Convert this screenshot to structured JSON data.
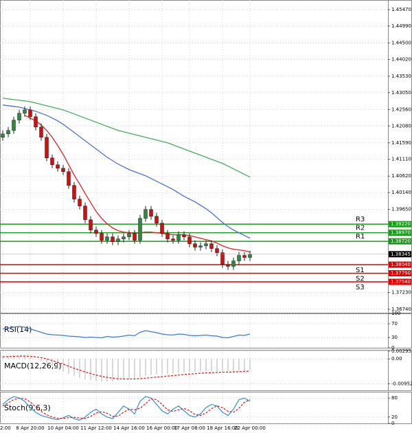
{
  "chart_data": [
    {
      "type": "candlestick",
      "grid": true,
      "categories": [
        "2:00",
        null,
        null,
        null,
        null,
        "8 Apr 20:00",
        null,
        null,
        null,
        null,
        null,
        "10 Apr 04:00",
        null,
        null,
        null,
        null,
        null,
        "11 Apr 12:00",
        null,
        null,
        null,
        null,
        null,
        "14 Apr 16:00",
        null,
        null,
        null,
        null,
        null,
        "16 Apr 00:00",
        null,
        null,
        null,
        null,
        "17 Apr 08:00",
        null,
        null,
        null,
        null,
        null,
        "18 Apr 16:00",
        null,
        null,
        null,
        null,
        "22 Apr 00:00"
      ],
      "ylim": [
        1.3664,
        1.4575
      ],
      "yticks": [
        {
          "value": 1.4547,
          "label": "1.45470"
        },
        {
          "value": 1.4499,
          "label": "1.44990"
        },
        {
          "value": 1.445,
          "label": "1.44500"
        },
        {
          "value": 1.4402,
          "label": "1.44020"
        },
        {
          "value": 1.4353,
          "label": "1.43530"
        },
        {
          "value": 1.4305,
          "label": "1.43050"
        },
        {
          "value": 1.4256,
          "label": "1.42560"
        },
        {
          "value": 1.4208,
          "label": "1.42080"
        },
        {
          "value": 1.4159,
          "label": "1.41590"
        },
        {
          "value": 1.4111,
          "label": "1.41110"
        },
        {
          "value": 1.4062,
          "label": "1.40620"
        },
        {
          "value": 1.4014,
          "label": "1.40140"
        },
        {
          "value": 1.3965,
          "label": "1.39650"
        },
        {
          "value": 1.3723,
          "label": "1.37230"
        },
        {
          "value": 1.3674,
          "label": "1.36740"
        }
      ],
      "up_color": "#2e8b3d",
      "down_color": "#d01010",
      "open": [
        1.4175,
        1.4185,
        1.4195,
        1.4225,
        1.4245,
        1.4255,
        1.4235,
        1.4205,
        1.4175,
        1.4115,
        1.4095,
        1.4085,
        1.4075,
        1.4035,
        1.3995,
        1.3975,
        1.3935,
        1.3905,
        1.3895,
        1.3875,
        1.3885,
        1.3871,
        1.3879,
        1.3885,
        1.3895,
        1.3875,
        1.3939,
        1.3965,
        1.3945,
        1.3925,
        1.3895,
        1.3879,
        1.3875,
        1.3891,
        1.3885,
        1.3865,
        1.3855,
        1.3859,
        1.3865,
        1.3851,
        1.3839,
        1.3805,
        1.3799,
        1.3815,
        1.3831,
        1.3825
      ],
      "high": [
        1.4195,
        1.4205,
        1.4235,
        1.4255,
        1.4265,
        1.4265,
        1.4245,
        1.4215,
        1.4185,
        1.4125,
        1.4105,
        1.4095,
        1.4085,
        1.4045,
        1.4005,
        1.3985,
        1.3945,
        1.3915,
        1.3905,
        1.3895,
        1.3895,
        1.3889,
        1.3895,
        1.3905,
        1.3905,
        1.3949,
        1.3975,
        1.3975,
        1.3955,
        1.3935,
        1.3905,
        1.3889,
        1.3901,
        1.3901,
        1.3895,
        1.3875,
        1.3869,
        1.3875,
        1.3875,
        1.3861,
        1.3849,
        1.3815,
        1.3825,
        1.3841,
        1.3841,
        1.38445
      ],
      "low": [
        1.4165,
        1.4175,
        1.4185,
        1.4215,
        1.4235,
        1.4225,
        1.4195,
        1.4165,
        1.4105,
        1.4085,
        1.4075,
        1.4065,
        1.4025,
        1.3985,
        1.3965,
        1.3925,
        1.3895,
        1.3885,
        1.3865,
        1.3865,
        1.3861,
        1.3861,
        1.3869,
        1.3875,
        1.3865,
        1.3865,
        1.3929,
        1.3935,
        1.3915,
        1.3885,
        1.3869,
        1.3865,
        1.3865,
        1.3875,
        1.3855,
        1.3845,
        1.3845,
        1.3849,
        1.3841,
        1.3829,
        1.3795,
        1.3789,
        1.3789,
        1.3805,
        1.3815,
        1.3815
      ],
      "close": [
        1.4185,
        1.4195,
        1.4225,
        1.4245,
        1.4255,
        1.4235,
        1.4205,
        1.4175,
        1.4115,
        1.4095,
        1.4085,
        1.4075,
        1.4035,
        1.3995,
        1.3975,
        1.3935,
        1.3905,
        1.3895,
        1.3875,
        1.3885,
        1.3871,
        1.3879,
        1.3885,
        1.3895,
        1.3875,
        1.3939,
        1.3965,
        1.3945,
        1.3925,
        1.3895,
        1.3879,
        1.3875,
        1.3891,
        1.3885,
        1.3865,
        1.3855,
        1.3859,
        1.3865,
        1.3851,
        1.3839,
        1.3805,
        1.3799,
        1.3815,
        1.3831,
        1.3825,
        1.38345
      ],
      "series": [
        {
          "color": "#3fae5a",
          "values": [
            1.4289,
            1.4287,
            1.4285,
            1.4283,
            1.4281,
            1.4279,
            1.4275,
            1.4271,
            1.4267,
            1.4263,
            1.4259,
            1.4255,
            1.4249,
            1.4243,
            1.4237,
            1.4231,
            1.4225,
            1.4219,
            1.4213,
            1.4207,
            1.4201,
            1.4195,
            1.4191,
            1.4187,
            1.4183,
            1.4179,
            1.4175,
            1.4171,
            1.4167,
            1.4163,
            1.4159,
            1.4153,
            1.4147,
            1.4141,
            1.4135,
            1.4129,
            1.4123,
            1.4117,
            1.4111,
            1.4105,
            1.4099,
            1.4091,
            1.4083,
            1.4075,
            1.4067,
            1.4059
          ]
        },
        {
          "color": "#4a6fd8",
          "values": [
            1.4269,
            1.4267,
            1.4265,
            1.4263,
            1.4259,
            1.4255,
            1.4251,
            1.4245,
            1.4239,
            1.4231,
            1.4223,
            1.4213,
            1.4201,
            1.4189,
            1.4177,
            1.4165,
            1.4153,
            1.4141,
            1.4129,
            1.4117,
            1.4107,
            1.4097,
            1.4089,
            1.4081,
            1.4075,
            1.4069,
            1.4063,
            1.4055,
            1.4047,
            1.4039,
            1.4031,
            1.4023,
            1.4013,
            1.4003,
            1.3995,
            1.3987,
            1.3977,
            1.3967,
            1.3955,
            1.3941,
            1.3927,
            1.3915,
            1.3905,
            1.3897,
            1.3889,
            1.3881
          ]
        },
        {
          "color": "#e02020",
          "values": [
            null,
            null,
            null,
            null,
            1.4239,
            1.4231,
            1.4223,
            1.4211,
            1.4195,
            1.4175,
            1.4151,
            1.4125,
            1.4095,
            1.4065,
            1.4039,
            1.4011,
            1.3985,
            1.3959,
            1.3939,
            1.3923,
            1.3911,
            1.3903,
            1.3899,
            1.3897,
            1.3895,
            1.3897,
            1.3899,
            1.3899,
            1.3897,
            1.3895,
            1.3893,
            1.3891,
            1.3891,
            1.3891,
            1.3889,
            1.3885,
            1.3881,
            1.3877,
            1.3873,
            1.3867,
            1.3859,
            1.3853,
            1.3849,
            1.3847,
            1.3845,
            1.3841
          ]
        }
      ],
      "levels": [
        {
          "name": "R3",
          "value": 1.3922,
          "label": "1.39220",
          "color": "#1a9a1a"
        },
        {
          "name": "R2",
          "value": 1.3897,
          "label": "1.38970",
          "color": "#1a9a1a"
        },
        {
          "name": "R1",
          "value": 1.3872,
          "label": "1.38720",
          "color": "#1a9a1a"
        },
        {
          "name": "S1",
          "value": 1.3804,
          "label": "1.38040",
          "color": "#e00000"
        },
        {
          "name": "S2",
          "value": 1.3779,
          "label": "1.37790",
          "color": "#e00000"
        },
        {
          "name": "S3",
          "value": 1.3754,
          "label": "1.37540",
          "color": "#e00000"
        }
      ],
      "last": 1.38345
    },
    {
      "type": "line",
      "title": "RSI(14)",
      "grid": true,
      "ylim": [
        0,
        100
      ],
      "yticks": [
        100,
        70,
        30,
        0
      ],
      "series": [
        {
          "color": "#3a7ad8",
          "values": [
            55,
            57,
            60,
            62,
            60,
            55,
            50,
            45,
            40,
            38,
            37,
            36,
            34,
            33,
            32,
            30,
            31,
            30,
            29,
            33,
            31,
            32,
            34,
            37,
            35,
            45,
            50,
            47,
            44,
            40,
            38,
            37,
            40,
            39,
            36,
            35,
            36,
            37,
            35,
            34,
            30,
            29,
            33,
            37,
            36,
            40
          ]
        }
      ]
    },
    {
      "type": "line",
      "title": "MACD(12,26,9)",
      "grid": true,
      "ylim": [
        -0.0121,
        0.0035
      ],
      "yticks": [
        0.002952,
        {
          "value": 0,
          "label": "0.00"
        },
        -0.009528
      ],
      "series": [
        {
          "style": "bar",
          "color": "#b0b0b0",
          "values": [
            0.001,
            0.0012,
            0.0014,
            0.0013,
            0.001,
            0.0006,
            0,
            -0.0008,
            -0.0018,
            -0.0028,
            -0.0038,
            -0.0048,
            -0.0058,
            -0.0066,
            -0.0073,
            -0.0078,
            -0.0082,
            -0.0085,
            -0.0087,
            -0.0087,
            -0.0086,
            -0.0084,
            -0.0081,
            -0.0078,
            -0.0076,
            -0.007,
            -0.0064,
            -0.0061,
            -0.0059,
            -0.0058,
            -0.0057,
            -0.0056,
            -0.0054,
            -0.0052,
            -0.0051,
            -0.005,
            -0.0049,
            -0.0048,
            -0.0047,
            -0.0047,
            -0.0048,
            -0.0049,
            -0.0048,
            -0.0046,
            -0.0045,
            -0.0043
          ]
        },
        {
          "style": "dashed",
          "color": "#e02020",
          "values": [
            0.0008,
            0.0009,
            0.001,
            0.0011,
            0.0011,
            0.001,
            0.0008,
            0.0005,
            0,
            -0.0006,
            -0.0013,
            -0.002,
            -0.0028,
            -0.0036,
            -0.0043,
            -0.005,
            -0.0056,
            -0.0062,
            -0.0067,
            -0.0071,
            -0.0074,
            -0.0076,
            -0.0077,
            -0.0077,
            -0.0077,
            -0.0076,
            -0.0074,
            -0.0072,
            -0.007,
            -0.0068,
            -0.0066,
            -0.0064,
            -0.0062,
            -0.006,
            -0.0058,
            -0.0057,
            -0.0055,
            -0.0054,
            -0.0053,
            -0.0052,
            -0.0051,
            -0.0051,
            -0.005,
            -0.0049,
            -0.0048,
            -0.0047
          ]
        }
      ]
    },
    {
      "type": "line",
      "title": "Stoch(9,6,3)",
      "grid": true,
      "ylim": [
        0,
        100
      ],
      "yticks": [
        80,
        20,
        0
      ],
      "series": [
        {
          "color": "#3a9ad8",
          "values": [
            60,
            75,
            85,
            80,
            70,
            50,
            35,
            25,
            20,
            15,
            12,
            18,
            25,
            15,
            10,
            20,
            35,
            45,
            30,
            20,
            15,
            35,
            55,
            45,
            30,
            70,
            85,
            80,
            60,
            40,
            30,
            45,
            55,
            40,
            25,
            20,
            30,
            50,
            60,
            55,
            35,
            25,
            45,
            75,
            80,
            70
          ]
        },
        {
          "style": "dashed",
          "color": "#e02020",
          "values": [
            55,
            65,
            75,
            80,
            78,
            68,
            52,
            38,
            27,
            20,
            16,
            15,
            18,
            19,
            17,
            15,
            22,
            33,
            37,
            32,
            22,
            23,
            35,
            45,
            43,
            48,
            62,
            78,
            75,
            60,
            43,
            38,
            43,
            47,
            40,
            28,
            25,
            33,
            47,
            55,
            50,
            38,
            35,
            48,
            67,
            75
          ]
        }
      ]
    }
  ]
}
